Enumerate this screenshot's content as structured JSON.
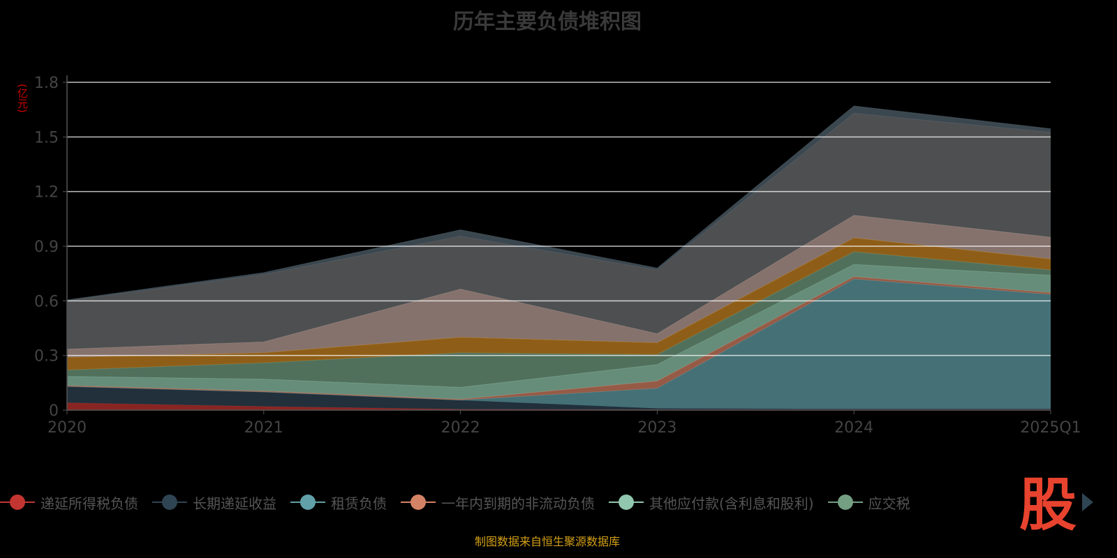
{
  "title": "历年主要负债堆积图",
  "unit": "(亿元)",
  "footer": "制图数据来自恒生聚源数据库",
  "logo_text": "股",
  "chart_data": {
    "type": "area",
    "stacked": true,
    "title": "历年主要负债堆积图",
    "ylabel": "(亿元)",
    "ylim": [
      0,
      1.8
    ],
    "yticks": [
      "0",
      "0.3",
      "0.6",
      "0.9",
      "1.2",
      "1.5",
      "1.8"
    ],
    "ytick_values": [
      0,
      0.3,
      0.6,
      0.9,
      1.2,
      1.5,
      1.8
    ],
    "categories": [
      "2020",
      "2021",
      "2022",
      "2023",
      "2024",
      "2025Q1"
    ],
    "grid": true,
    "legend_position": "bottom",
    "series": [
      {
        "name": "递延所得税负债",
        "color": "#c23531",
        "values": [
          0.04,
          0.02,
          0.005,
          0.003,
          0.003,
          0.003
        ]
      },
      {
        "name": "长期递延收益",
        "color": "#2f4554",
        "values": [
          0.09,
          0.08,
          0.05,
          0.007,
          0.004,
          0.004
        ]
      },
      {
        "name": "租赁负债",
        "color": "#61a0a8",
        "values": [
          0,
          0,
          0,
          0.11,
          0.713,
          0.628
        ]
      },
      {
        "name": "一年内到期的非流动负债",
        "color": "#d48265",
        "values": [
          0.005,
          0.005,
          0.005,
          0.04,
          0.013,
          0.01
        ]
      },
      {
        "name": "其他应付款(含利息和股利)",
        "color": "#91c7ae",
        "values": [
          0.05,
          0.065,
          0.065,
          0.09,
          0.067,
          0.095
        ]
      },
      {
        "name": "应交税",
        "color": "#749f83",
        "values": [
          0.035,
          0.09,
          0.19,
          0.055,
          0.07,
          0.03
        ]
      },
      {
        "name": null,
        "color": "#ca8622",
        "values": [
          0.07,
          0.055,
          0.085,
          0.065,
          0.076,
          0.06
        ]
      },
      {
        "name": null,
        "color": "#bda29a",
        "values": [
          0.045,
          0.06,
          0.265,
          0.05,
          0.124,
          0.12
        ]
      },
      {
        "name": null,
        "color": "#6e7074",
        "values": [
          0.265,
          0.37,
          0.29,
          0.35,
          0.56,
          0.575
        ]
      },
      {
        "name": null,
        "color": "#546570",
        "values": [
          0.005,
          0.01,
          0.035,
          0.01,
          0.04,
          0.02
        ]
      }
    ]
  }
}
